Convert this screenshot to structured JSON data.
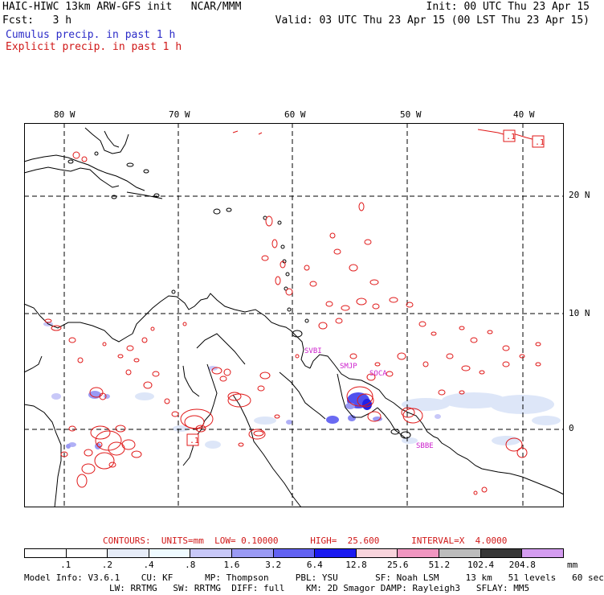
{
  "header": {
    "left_line1": "HAIC-HIWC 13km ARW-GFS init   NCAR/MMM",
    "left_line2": "Fcst:   3 h",
    "legend_cumulus": "Cumulus precip. in past 1 h",
    "legend_explicit": "Explicit precip. in past 1 h",
    "right_line1": "Init: 00 UTC Thu 23 Apr 15",
    "right_line2": "Valid: 03 UTC Thu 23 Apr 15 (00 LST Thu 23 Apr 15)"
  },
  "map": {
    "lon_labels": [
      "80 W",
      "70 W",
      "60 W",
      "50 W",
      "40 W"
    ],
    "lat_labels": [
      "20 N",
      "10 N",
      "0"
    ],
    "station_labels": [
      "SVBI",
      "SMJP",
      "SOCA",
      "SBBE"
    ],
    "contour_box_labels": [
      ".1",
      ".1",
      ".1"
    ],
    "colors": {
      "cumulus": "#6a6af0",
      "explicit": "#e01818",
      "coast": "#000000",
      "grid": "#000000"
    }
  },
  "contours": {
    "text": "CONTOURS:  UNITS=mm  LOW= 0.10000      HIGH=  25.600      INTERVAL=X  4.0000"
  },
  "colorbar": {
    "ticks": [
      ".1",
      ".2",
      ".4",
      ".8",
      "1.6",
      "3.2",
      "6.4",
      "12.8",
      "25.6",
      "51.2",
      "102.4",
      "204.8"
    ],
    "unit": "mm",
    "colors": [
      "#ffffff",
      "#ffffff",
      "#e6ecf8",
      "#eefaff",
      "#c8c8f8",
      "#9a9af4",
      "#6262f2",
      "#1a1af0",
      "#f8d4dc",
      "#f096c0",
      "#bcbcbc",
      "#383838",
      "#d49cf0"
    ]
  },
  "footer": {
    "line1": "Model Info: V3.6.1    CU: KF      MP: Thompson     PBL: YSU       SF: Noah LSM     13 km   51 levels   60 sec",
    "line2": "                LW: RRTMG   SW: RRTMG  DIFF: full    KM: 2D Smagor DAMP: Rayleigh3   SFLAY: MM5"
  }
}
